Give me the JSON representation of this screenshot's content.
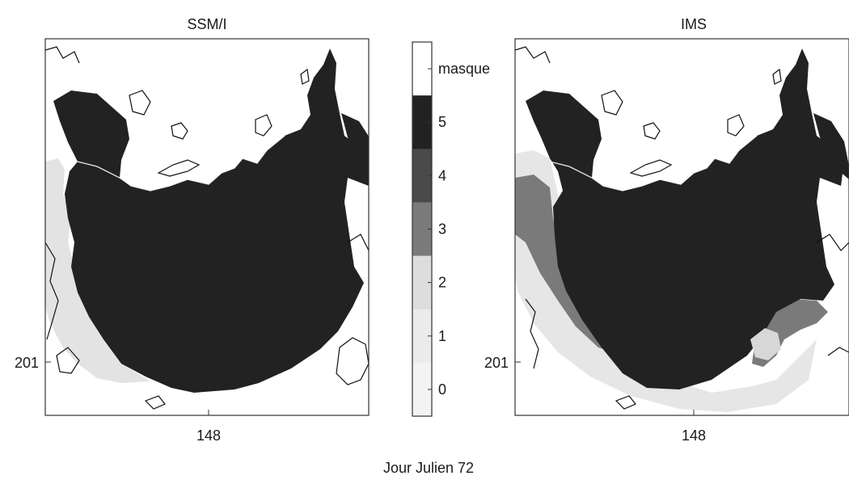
{
  "figure": {
    "caption": "Jour Julien 72",
    "panels": [
      {
        "title": "SSM/I",
        "x_tick": "148",
        "y_tick": "201"
      },
      {
        "title": "IMS",
        "x_tick": "148",
        "y_tick": "201"
      }
    ],
    "colorbar": {
      "labels": [
        "masque",
        "5",
        "4",
        "3",
        "2",
        "1",
        "0"
      ],
      "colors": [
        "#ffffff",
        "#222222",
        "#4a4a4a",
        "#7a7a7a",
        "#dddddd",
        "#ebebeb",
        "#f3f3f3"
      ]
    }
  },
  "colors": {
    "ice_dark": "#222222",
    "ice_mid": "#777777",
    "ice_light": "#e3e3e3",
    "coast_line": "#111111",
    "frame": "#333333"
  }
}
